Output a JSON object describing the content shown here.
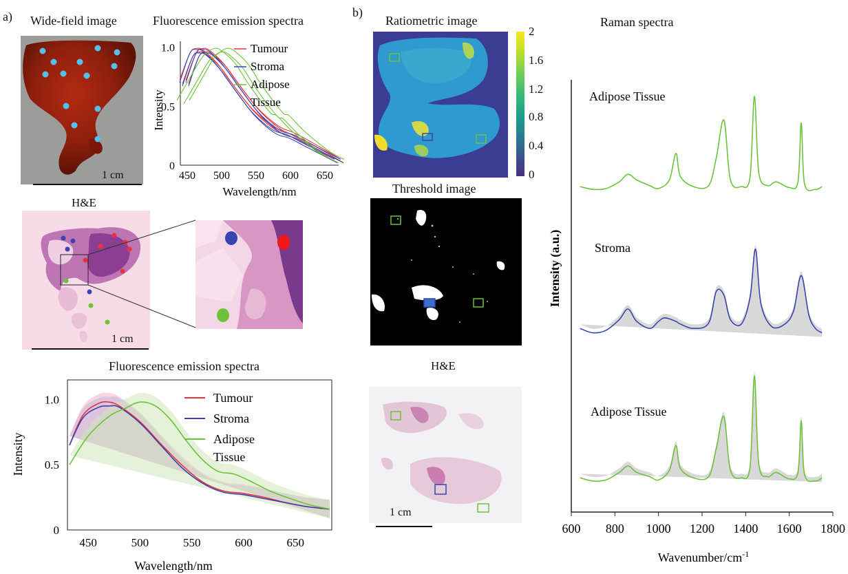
{
  "panel_a": {
    "label": "a)",
    "widefield": {
      "title": "Wide-field image",
      "scale": "1 cm"
    },
    "he": {
      "title": "H&E",
      "scale": "1 cm"
    },
    "fluor_small": {
      "title": "Fluorescence emission spectra",
      "ylabel": "Intensity",
      "xlabel": "Wavelength/nm",
      "yticks": [
        "1.0",
        "0.5",
        "0"
      ],
      "xticks": [
        "450",
        "500",
        "550",
        "600",
        "650"
      ],
      "legend": [
        "Tumour",
        "Stroma",
        "Adipose",
        "Tissue"
      ]
    },
    "fluor_big": {
      "title": "Fluorescence emission spectra",
      "ylabel": "Intensity",
      "xlabel": "Wavelength/nm",
      "yticks": [
        "1.0",
        "0.5",
        "0"
      ],
      "xticks": [
        "450",
        "500",
        "550",
        "600",
        "650"
      ],
      "legend": [
        "Tumour",
        "Stroma",
        "Adipose",
        "Tissue"
      ]
    }
  },
  "panel_b": {
    "label": "b)",
    "ratiometric": {
      "title": "Ratiometric image",
      "colorbar": [
        "2",
        "1.6",
        "1.2",
        "0.8",
        "0.4",
        "0"
      ]
    },
    "threshold": {
      "title": "Threshold image"
    },
    "he": {
      "title": "H&E",
      "scale": "1 cm"
    },
    "raman": {
      "title": "Raman spectra",
      "ylabel": "Intensity (a.u.)",
      "xlabel": "Wavenumber/cm",
      "xlabel_sup": "-1",
      "xticks": [
        "600",
        "800",
        "1000",
        "1200",
        "1400",
        "1600",
        "1800"
      ],
      "traces": [
        "Adipose Tissue",
        "Stroma",
        "Adipose Tissue"
      ]
    }
  },
  "colors": {
    "tumour": "#e8323c",
    "stroma": "#3a44b0",
    "adipose": "#6cc23a",
    "dot_blue": "#55bfe6",
    "he_pink": "#f6d6e4",
    "tissue_dark": "#8a1d0f"
  },
  "chart_data": [
    {
      "type": "line",
      "title": "Fluorescence emission spectra",
      "xlabel": "Wavelength/nm",
      "ylabel": "Intensity",
      "xlim": [
        440,
        670
      ],
      "ylim": [
        0,
        1.05
      ],
      "series": [
        {
          "name": "Tumour",
          "x": [
            445,
            460,
            470,
            480,
            500,
            520,
            550,
            580,
            600,
            620,
            650,
            670
          ],
          "y": [
            0.72,
            0.95,
            0.99,
            0.97,
            0.86,
            0.7,
            0.48,
            0.33,
            0.28,
            0.22,
            0.12,
            0.05
          ]
        },
        {
          "name": "Stroma",
          "x": [
            445,
            460,
            470,
            480,
            500,
            520,
            550,
            580,
            600,
            620,
            650,
            670
          ],
          "y": [
            0.7,
            0.95,
            0.98,
            0.96,
            0.84,
            0.68,
            0.45,
            0.3,
            0.26,
            0.2,
            0.11,
            0.05
          ]
        },
        {
          "name": "Adipose Tissue",
          "x": [
            445,
            460,
            480,
            490,
            500,
            510,
            530,
            550,
            580,
            590,
            610,
            630,
            650,
            670
          ],
          "y": [
            0.55,
            0.7,
            0.9,
            0.96,
            0.99,
            0.97,
            0.86,
            0.68,
            0.45,
            0.42,
            0.3,
            0.2,
            0.11,
            0.05
          ]
        }
      ]
    },
    {
      "type": "line",
      "title": "Fluorescence emission spectra",
      "xlabel": "Wavelength/nm",
      "ylabel": "Intensity",
      "xlim": [
        430,
        685
      ],
      "ylim": [
        0,
        1.15
      ],
      "series": [
        {
          "name": "Tumour",
          "x": [
            432,
            445,
            460,
            470,
            480,
            500,
            520,
            540,
            560,
            580,
            600,
            620,
            640,
            660,
            683
          ],
          "y": [
            0.65,
            0.88,
            0.97,
            0.98,
            0.95,
            0.83,
            0.66,
            0.5,
            0.37,
            0.3,
            0.28,
            0.25,
            0.21,
            0.18,
            0.16
          ]
        },
        {
          "name": "Stroma",
          "x": [
            432,
            445,
            460,
            470,
            480,
            500,
            520,
            540,
            560,
            580,
            600,
            620,
            640,
            660,
            683
          ],
          "y": [
            0.65,
            0.86,
            0.94,
            0.95,
            0.94,
            0.82,
            0.65,
            0.48,
            0.36,
            0.29,
            0.27,
            0.24,
            0.21,
            0.18,
            0.16
          ]
        },
        {
          "name": "Adipose Tissue",
          "x": [
            432,
            450,
            470,
            485,
            500,
            515,
            530,
            545,
            560,
            575,
            590,
            605,
            625,
            645,
            665,
            683
          ],
          "y": [
            0.5,
            0.72,
            0.87,
            0.93,
            0.98,
            0.95,
            0.84,
            0.68,
            0.54,
            0.45,
            0.43,
            0.38,
            0.3,
            0.24,
            0.19,
            0.16
          ]
        }
      ]
    },
    {
      "type": "line",
      "title": "Raman spectra",
      "xlabel": "Wavenumber/cm-1",
      "ylabel": "Intensity (a.u.)",
      "xlim": [
        600,
        1800
      ],
      "series": [
        {
          "name": "Adipose Tissue",
          "x": [
            640,
            700,
            760,
            820,
            860,
            900,
            960,
            1000,
            1050,
            1080,
            1100,
            1160,
            1230,
            1265,
            1300,
            1330,
            1380,
            1420,
            1440,
            1460,
            1500,
            1540,
            1600,
            1640,
            1655,
            1670,
            1720,
            1750
          ],
          "y": [
            0.05,
            0.02,
            0.03,
            0.1,
            0.18,
            0.12,
            0.06,
            0.03,
            0.12,
            0.4,
            0.16,
            0.05,
            0.06,
            0.35,
            0.75,
            0.12,
            0.05,
            0.15,
            1.0,
            0.2,
            0.06,
            0.1,
            0.04,
            0.1,
            0.72,
            0.08,
            0.02,
            0.05
          ]
        },
        {
          "name": "Stroma",
          "x": [
            640,
            700,
            760,
            820,
            860,
            900,
            960,
            1000,
            1030,
            1080,
            1100,
            1160,
            1230,
            1265,
            1300,
            1330,
            1380,
            1420,
            1445,
            1470,
            1520,
            1580,
            1620,
            1655,
            1690,
            1720,
            1750
          ],
          "y": [
            0.1,
            0.05,
            0.08,
            0.2,
            0.32,
            0.18,
            0.1,
            0.18,
            0.22,
            0.18,
            0.15,
            0.1,
            0.16,
            0.52,
            0.48,
            0.2,
            0.15,
            0.45,
            1.0,
            0.38,
            0.12,
            0.15,
            0.3,
            0.7,
            0.25,
            0.1,
            0.05
          ]
        },
        {
          "name": "Adipose Tissue",
          "x": [
            640,
            700,
            760,
            820,
            860,
            900,
            960,
            1000,
            1050,
            1080,
            1100,
            1160,
            1230,
            1265,
            1300,
            1330,
            1380,
            1420,
            1440,
            1460,
            1500,
            1540,
            1600,
            1640,
            1655,
            1670,
            1720,
            1750
          ],
          "y": [
            0.05,
            0.02,
            0.03,
            0.1,
            0.16,
            0.1,
            0.06,
            0.03,
            0.12,
            0.35,
            0.14,
            0.05,
            0.06,
            0.32,
            0.62,
            0.12,
            0.05,
            0.15,
            1.0,
            0.18,
            0.06,
            0.1,
            0.04,
            0.1,
            0.58,
            0.08,
            0.02,
            0.05
          ]
        }
      ]
    }
  ]
}
